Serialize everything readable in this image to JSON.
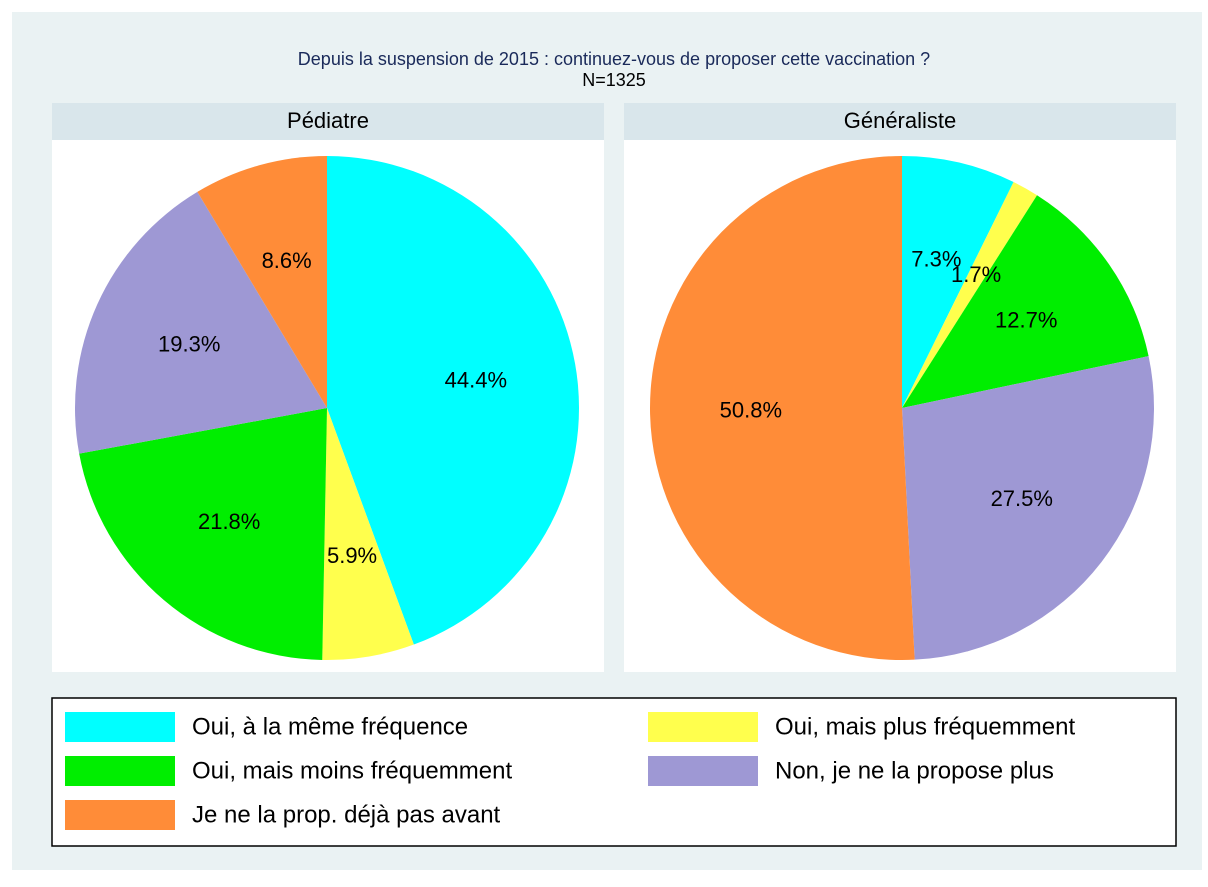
{
  "title": "Depuis la suspension de 2015 : continuez-vous de proposer cette vaccination ?",
  "subtitle": "N=1325",
  "chart_data": [
    {
      "type": "pie",
      "title": "Pédiatre",
      "categories": [
        "Oui, à la même fréquence",
        "Oui, mais plus fréquemment",
        "Oui, mais moins fréquemment",
        "Non, je ne la propose plus",
        "Je ne la prop. déjà pas avant"
      ],
      "values": [
        44.4,
        5.9,
        21.8,
        19.3,
        8.6
      ],
      "value_labels": [
        "44.4%",
        "5.9%",
        "21.8%",
        "19.3%",
        "8.6%"
      ],
      "colors": [
        "#00ffff",
        "#ffff4d",
        "#00ee00",
        "#9e98d4",
        "#ff8c38"
      ]
    },
    {
      "type": "pie",
      "title": "Généraliste",
      "categories": [
        "Oui, à la même fréquence",
        "Oui, mais plus fréquemment",
        "Oui, mais moins fréquemment",
        "Non, je ne la propose plus",
        "Je ne la prop. déjà pas avant"
      ],
      "values": [
        7.3,
        1.7,
        12.7,
        27.5,
        50.8
      ],
      "value_labels": [
        "7.3%",
        "1.7%",
        "12.7%",
        "27.5%",
        "50.8%"
      ],
      "colors": [
        "#00ffff",
        "#ffff4d",
        "#00ee00",
        "#9e98d4",
        "#ff8c38"
      ]
    }
  ]
}
